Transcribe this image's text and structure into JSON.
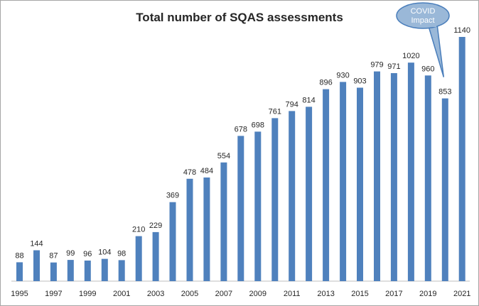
{
  "chart_data": {
    "type": "bar",
    "title": "Total number of SQAS assessments",
    "xlabel": "",
    "ylabel": "",
    "ylim": [
      0,
      1140
    ],
    "grid": false,
    "legend": "none",
    "categories": [
      "1995",
      "1996",
      "1997",
      "1998",
      "1999",
      "2000",
      "2001",
      "2002",
      "2003",
      "2004",
      "2005",
      "2006",
      "2007",
      "2008",
      "2009",
      "2010",
      "2011",
      "2012",
      "2013",
      "2014",
      "2015",
      "2016",
      "2017",
      "2018",
      "2019",
      "2020",
      "2021"
    ],
    "values": [
      88,
      144,
      87,
      99,
      96,
      104,
      98,
      210,
      229,
      369,
      478,
      484,
      554,
      678,
      698,
      761,
      794,
      814,
      896,
      930,
      903,
      979,
      971,
      1020,
      960,
      853,
      1140
    ],
    "tick_labels": [
      "1995",
      "1997",
      "1999",
      "2001",
      "2003",
      "2005",
      "2007",
      "2009",
      "2011",
      "2013",
      "2015",
      "2017",
      "2019",
      "2021"
    ],
    "colors": {
      "bar": "#4f81bd",
      "axis": "#bfbfbf",
      "callout_fill": "#9ab8d8",
      "callout_stroke": "#4a7ebb"
    },
    "annotation": {
      "text_lines": [
        "COVID",
        "Impact"
      ],
      "target_category": "2020"
    }
  }
}
